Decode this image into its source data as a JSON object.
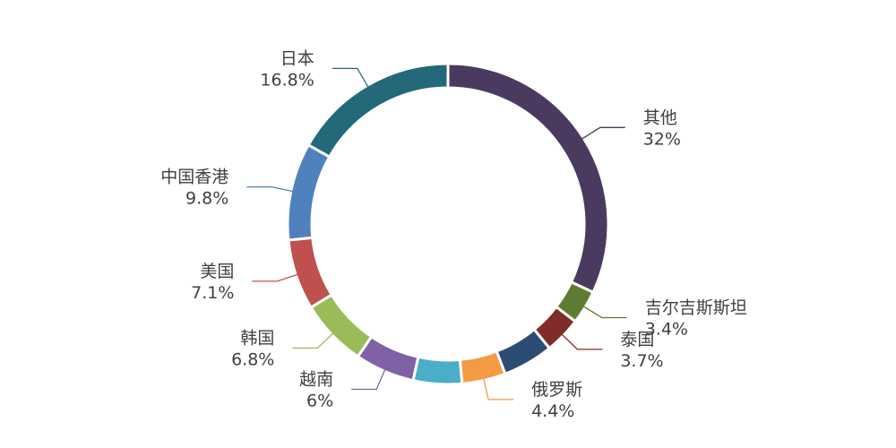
{
  "chart_data": {
    "type": "pie",
    "variant": "donut",
    "title": "",
    "slices": [
      {
        "label": "其他",
        "value": 32,
        "display": "32%",
        "color": "#4b3a5f"
      },
      {
        "label": "吉尔吉斯斯坦",
        "value": 3.4,
        "display": "3.4%",
        "color": "#5f7a33"
      },
      {
        "label": "泰国",
        "value": 3.7,
        "display": "3.7%",
        "color": "#7f2c2a"
      },
      {
        "label": "",
        "value": 5.1,
        "display": "",
        "color": "#2c4c76"
      },
      {
        "label": "俄罗斯",
        "value": 4.4,
        "display": "4.4%",
        "color": "#f59a44"
      },
      {
        "label": "",
        "value": 4.9,
        "display": "",
        "color": "#4aaec8"
      },
      {
        "label": "越南",
        "value": 6,
        "display": "6%",
        "color": "#7f62a5"
      },
      {
        "label": "韩国",
        "value": 6.8,
        "display": "6.8%",
        "color": "#9bbb59"
      },
      {
        "label": "美国",
        "value": 7.1,
        "display": "7.1%",
        "color": "#c0504d"
      },
      {
        "label": "中国香港",
        "value": 9.8,
        "display": "9.8%",
        "color": "#4f81bd"
      },
      {
        "label": "日本",
        "value": 16.8,
        "display": "16.8%",
        "color": "#23697a"
      }
    ]
  }
}
